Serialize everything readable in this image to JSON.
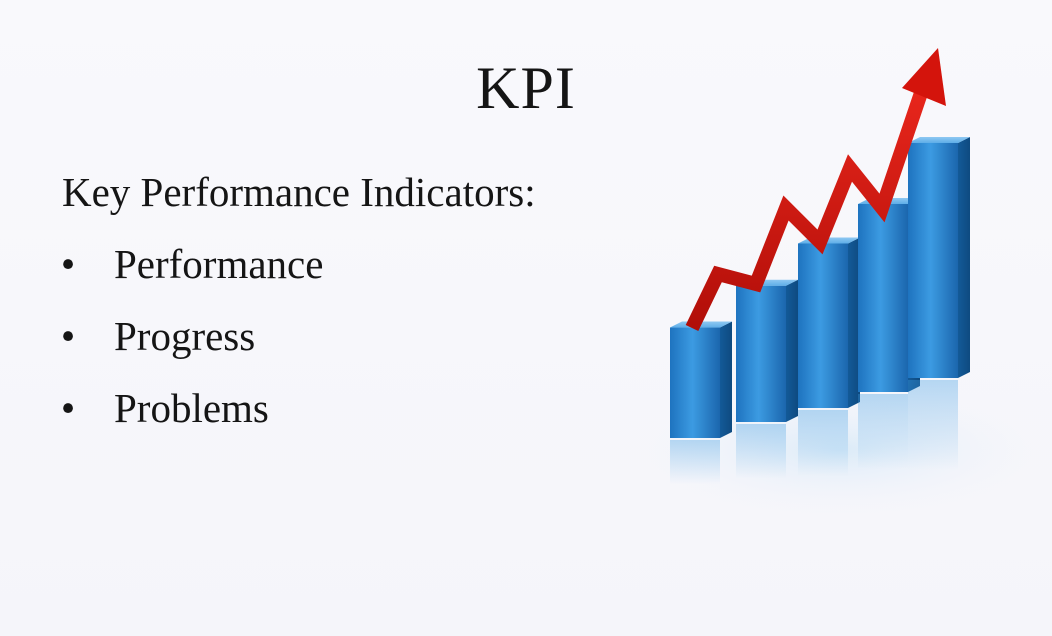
{
  "slide": {
    "title": "KPI",
    "subtitle": "Key Performance Indicators:",
    "bullets": [
      {
        "marker": "•",
        "text": "Performance"
      },
      {
        "marker": "•",
        "text": "Progress"
      },
      {
        "marker": "•",
        "text": "Problems"
      }
    ]
  },
  "illustration": {
    "name": "rising-bar-chart-with-arrow",
    "bar_levels": [
      0.47,
      0.58,
      0.7,
      0.8,
      1.0
    ],
    "bar_color": "#2a8ad4",
    "arrow_color": "#d4140c"
  }
}
